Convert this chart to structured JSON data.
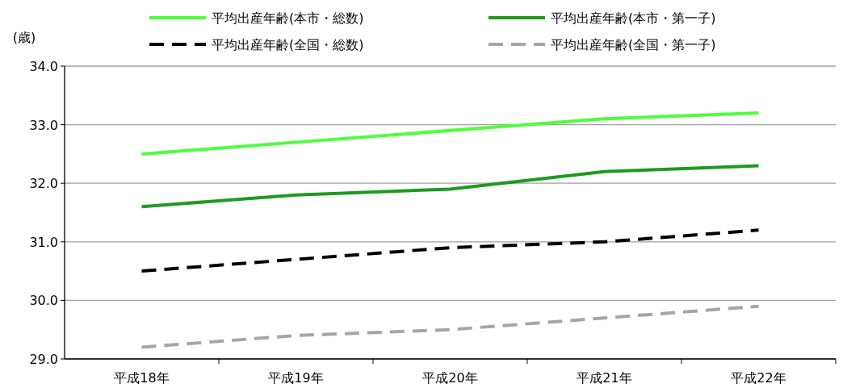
{
  "chart_data": {
    "type": "line",
    "ylabel": "(歳)",
    "categories": [
      "平成18年",
      "平成19年",
      "平成20年",
      "平成21年",
      "平成22年"
    ],
    "series": [
      {
        "name": "平均出産年齢(本市・総数)",
        "color": "#4cff3a",
        "values": [
          32.5,
          32.7,
          32.9,
          33.1,
          33.2
        ],
        "line_style": "solid"
      },
      {
        "name": "平均出産年齢(本市・第一子)",
        "color": "#1f9a1f",
        "values": [
          31.6,
          31.8,
          31.9,
          32.2,
          32.3
        ],
        "line_style": "solid"
      },
      {
        "name": "平均出産年齢(全国・総数)",
        "color": "#000000",
        "values": [
          30.5,
          30.7,
          30.9,
          31.0,
          31.2
        ],
        "line_style": "dashed"
      },
      {
        "name": "平均出産年齢(全国・第一子)",
        "color": "#a6a6a6",
        "values": [
          29.2,
          29.4,
          29.5,
          29.7,
          29.9
        ],
        "line_style": "dashed"
      }
    ],
    "ylim": [
      29,
      34
    ],
    "yticks": [
      {
        "value": 29,
        "label": "29.0"
      },
      {
        "value": 30,
        "label": "30.0"
      },
      {
        "value": 31,
        "label": "31.0"
      },
      {
        "value": 32,
        "label": "32.0"
      },
      {
        "value": 33,
        "label": "33.0"
      },
      {
        "value": 34,
        "label": "34.0"
      }
    ],
    "grid": "y",
    "legend": "top",
    "marker": "none"
  }
}
